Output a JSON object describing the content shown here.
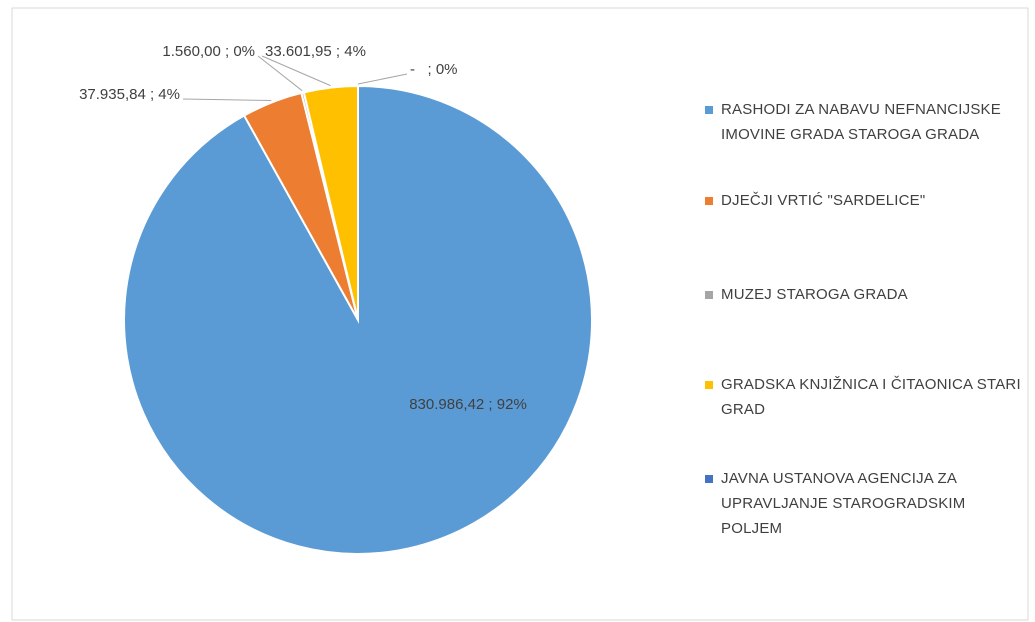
{
  "chart_data": {
    "type": "pie",
    "categories": [
      "RASHODI ZA NABAVU NEFNANCIJSKE IMOVINE GRADA STAROGA GRADA",
      "DJEČJI VRTIĆ \"SARDELICE\"",
      "MUZEJ STAROGA GRADA",
      "GRADSKA KNJIŽNICA I ČITAONICA STARI GRAD",
      "JAVNA USTANOVA AGENCIJA ZA UPRAVLJANJE STAROGRADSKIM POLJEM"
    ],
    "values": [
      830986.42,
      37935.84,
      1560.0,
      33601.95,
      0
    ],
    "value_labels": [
      "830.986,42 ; 92%",
      "37.935,84 ; 4%",
      "1.560,00 ; 0%",
      "33.601,95 ; 4%",
      "-   ; 0%"
    ],
    "colors": [
      "#5b9bd5",
      "#ed7d31",
      "#a5a5a5",
      "#ffc000",
      "#4472c4"
    ],
    "legend": "right"
  }
}
